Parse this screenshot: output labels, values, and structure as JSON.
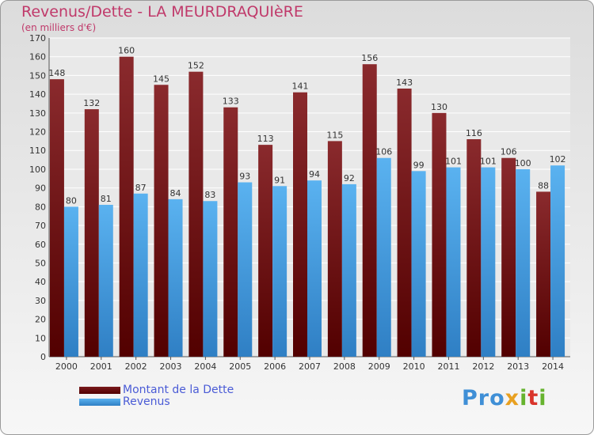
{
  "title": "Revenus/Dette - LA MEURDRAQUIèRE",
  "subtitle": "(en milliers d'€)",
  "logo": "Proxiti",
  "colors": {
    "title": "#c0396a",
    "dette": "#6b0f12",
    "revenus": "#4aa3e8",
    "legend_text": "#4a5bd6"
  },
  "chart_data": {
    "type": "bar",
    "categories": [
      "2000",
      "2001",
      "2002",
      "2003",
      "2004",
      "2005",
      "2006",
      "2007",
      "2008",
      "2009",
      "2010",
      "2011",
      "2012",
      "2013",
      "2014"
    ],
    "series": [
      {
        "name": "Montant de la Dette",
        "values": [
          148,
          132,
          160,
          145,
          152,
          133,
          113,
          141,
          115,
          156,
          143,
          130,
          116,
          106,
          88
        ]
      },
      {
        "name": "Revenus",
        "values": [
          80,
          81,
          87,
          84,
          83,
          93,
          91,
          94,
          92,
          106,
          99,
          101,
          101,
          100,
          102
        ]
      }
    ],
    "ylim": [
      0,
      170
    ],
    "yticks": [
      0,
      10,
      20,
      30,
      40,
      50,
      60,
      70,
      80,
      90,
      100,
      110,
      120,
      130,
      140,
      150,
      160,
      170
    ],
    "grid": true,
    "legend_position": "bottom-left"
  }
}
